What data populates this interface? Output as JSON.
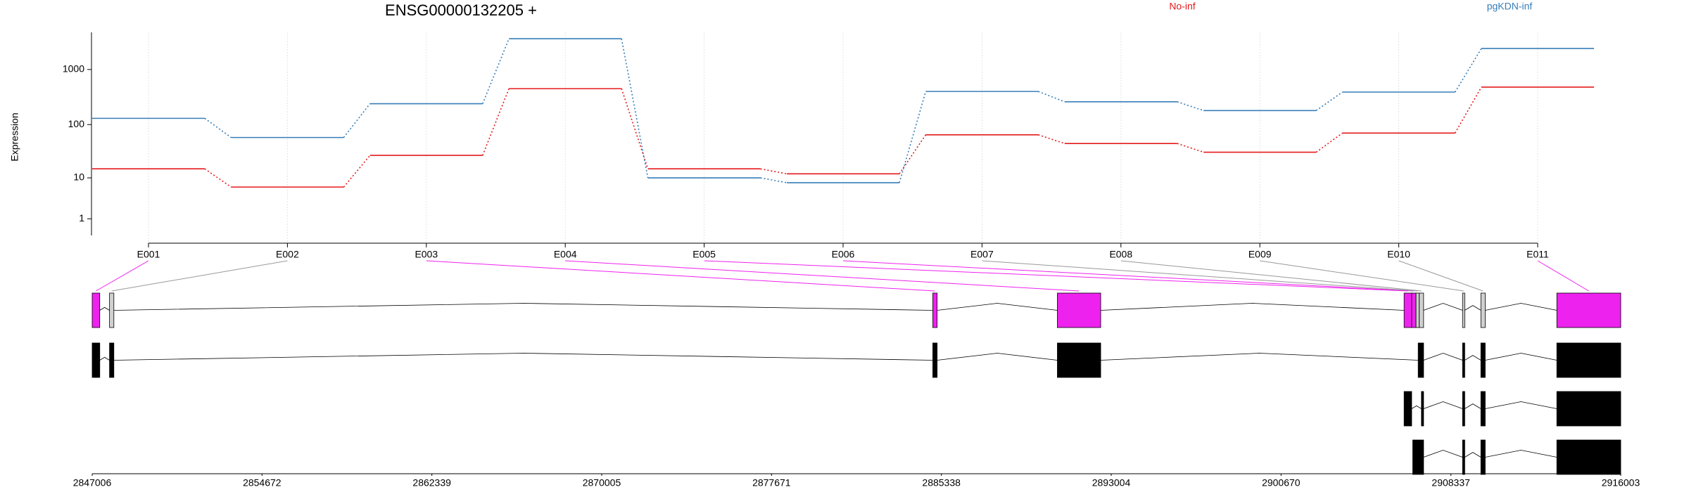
{
  "chart_data": {
    "type": "exon-usage",
    "title": "ENSG00000132205 +",
    "y_label": "Expression",
    "y_scale": "log1p",
    "ylim": [
      0,
      4700
    ],
    "yticks": [
      1,
      10,
      100,
      1000
    ],
    "grid": true,
    "categories": [
      "E001",
      "E002",
      "E003",
      "E004",
      "E005",
      "E006",
      "E007",
      "E008",
      "E009",
      "E010",
      "E011"
    ],
    "series": [
      {
        "name": "No-inf",
        "color": "#e41a1c",
        "values": [
          15,
          6.5,
          27,
          450,
          15,
          12,
          65,
          45,
          31,
          70,
          480
        ]
      },
      {
        "name": "pgKDN-inf",
        "color": "#377eb8",
        "values": [
          130,
          58,
          240,
          3600,
          10,
          8,
          400,
          260,
          180,
          390,
          2400
        ]
      }
    ],
    "significant": [
      true,
      false,
      true,
      true,
      true,
      true,
      false,
      false,
      false,
      false,
      true
    ],
    "significant_color": "#ee22ee",
    "other_color": "#d0d0d0",
    "exon_starts": [
      2847006,
      2847788,
      2884950,
      2890573,
      2906224,
      2906566,
      2906762,
      2906909,
      2908864,
      2909690,
      2913119
    ],
    "exon_ends": [
      2847348,
      2847984,
      2885146,
      2892529,
      2906566,
      2906762,
      2906909,
      2907104,
      2908962,
      2909886,
      2916003
    ],
    "transcripts": [
      [
        [
          2847006,
          2847348
        ],
        [
          2847788,
          2847984
        ],
        [
          2884950,
          2885146
        ],
        [
          2890573,
          2892529
        ],
        [
          2906860,
          2907104
        ],
        [
          2908864,
          2908962
        ],
        [
          2909690,
          2909886
        ],
        [
          2913119,
          2916003
        ]
      ],
      [
        [
          2906224,
          2906566
        ],
        [
          2907006,
          2907104
        ],
        [
          2908864,
          2908962
        ],
        [
          2909690,
          2909886
        ],
        [
          2913119,
          2916003
        ]
      ],
      [
        [
          2906615,
          2907104
        ],
        [
          2908864,
          2908962
        ],
        [
          2909690,
          2909886
        ],
        [
          2913119,
          2916003
        ]
      ]
    ],
    "genomic_range": [
      2847006,
      2916003
    ],
    "genomic_ticks": [
      2847006,
      2854672,
      2862339,
      2870005,
      2877671,
      2885338,
      2893004,
      2900670,
      2908337,
      2916003
    ]
  }
}
